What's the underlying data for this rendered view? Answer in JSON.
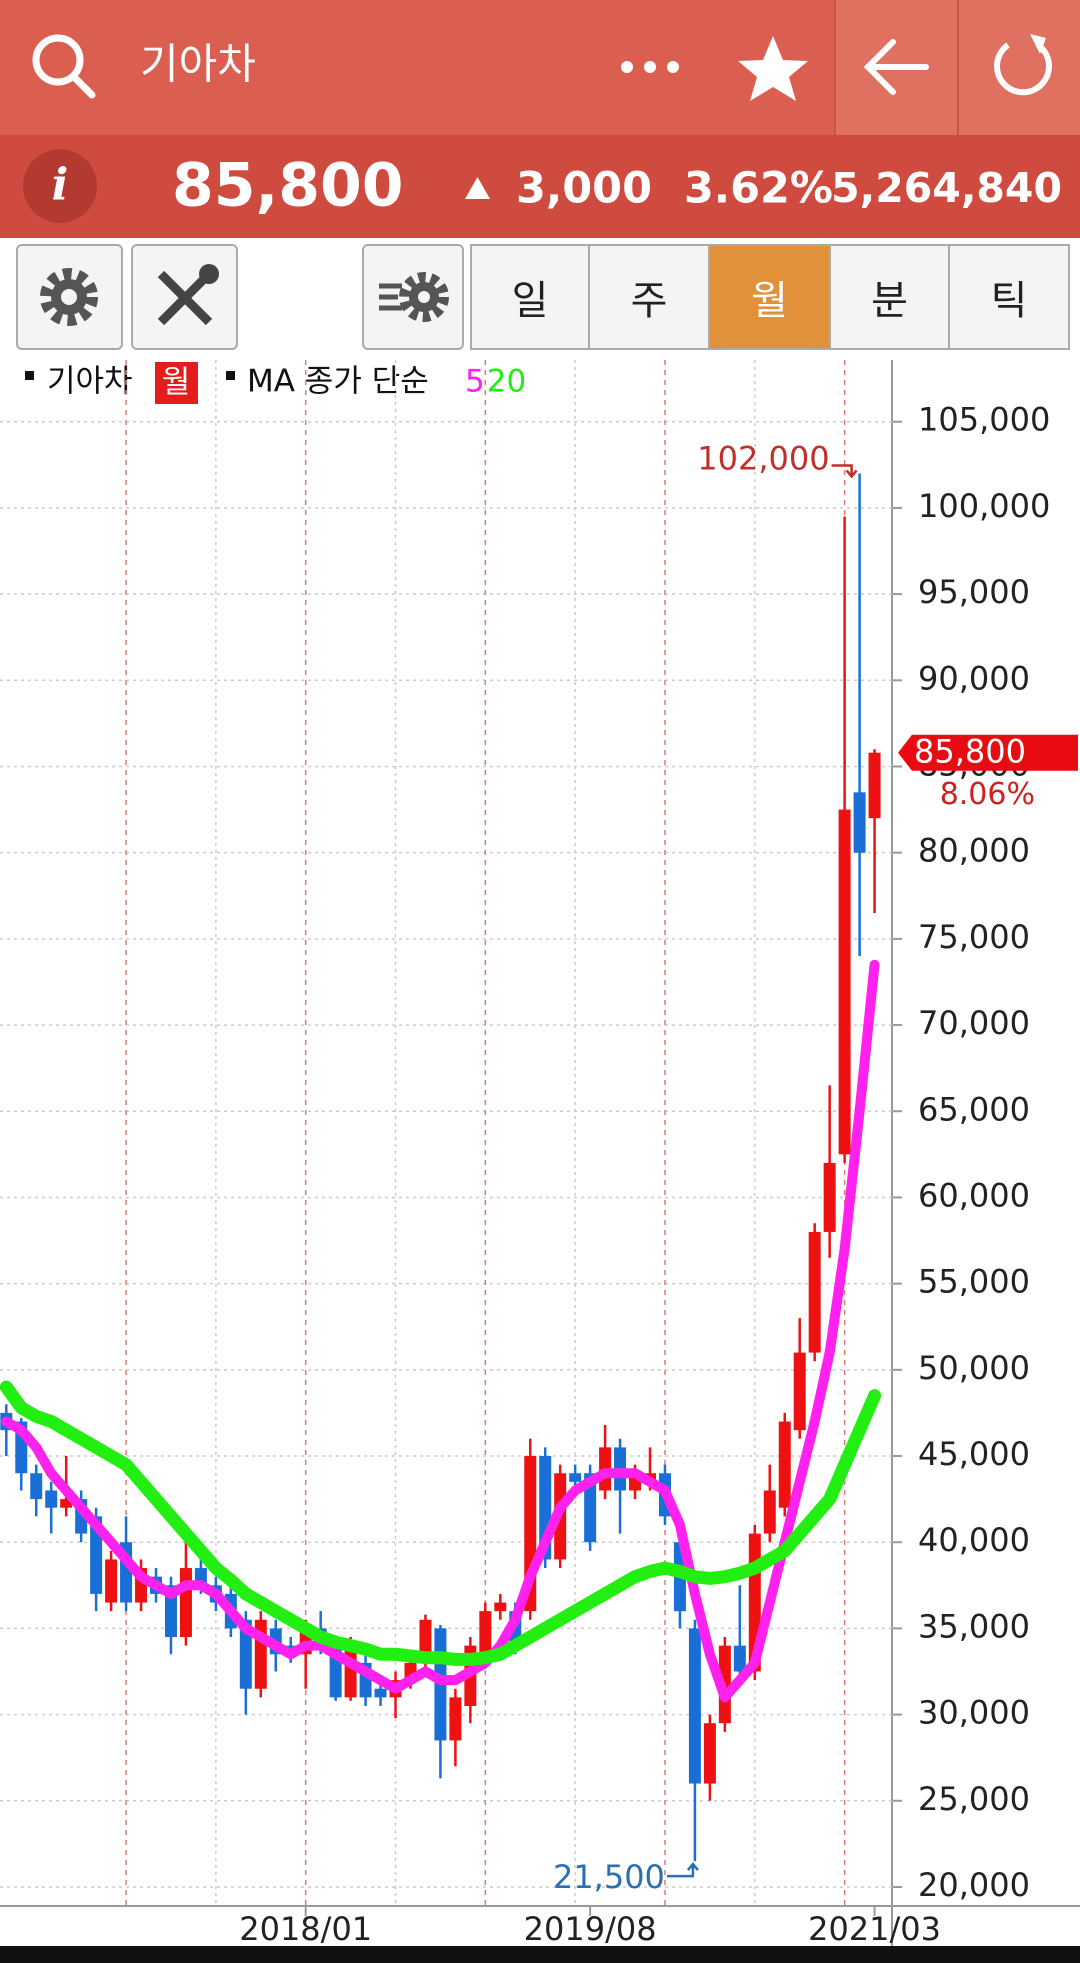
{
  "header": {
    "title": "기아차"
  },
  "quote": {
    "price": "85,800",
    "change": "3,000",
    "change_pct": "3.62%",
    "volume": "5,264,840"
  },
  "toolbar": {
    "periods": [
      "일",
      "주",
      "월",
      "분",
      "틱"
    ],
    "active": 2
  },
  "chart_data": {
    "type": "candlestick",
    "name": "기아차",
    "period": "월",
    "ma_label": "MA 종가 단순",
    "categories": [
      null,
      null,
      null,
      null,
      null,
      null,
      null,
      null,
      null,
      null,
      null,
      null,
      null,
      null,
      null,
      null,
      null,
      null,
      null,
      null,
      "2018/01",
      null,
      null,
      null,
      null,
      null,
      null,
      null,
      null,
      null,
      null,
      null,
      null,
      null,
      null,
      null,
      null,
      null,
      null,
      "2019/08",
      null,
      null,
      null,
      null,
      null,
      null,
      null,
      null,
      null,
      null,
      null,
      null,
      null,
      null,
      null,
      null,
      null,
      null,
      "2021/03"
    ],
    "open": [
      47500,
      47000,
      44000,
      43000,
      42000,
      42500,
      41500,
      36500,
      40000,
      36500,
      38000,
      37500,
      34500,
      38500,
      37500,
      37000,
      35500,
      31500,
      35000,
      34000,
      33500,
      35000,
      34000,
      31000,
      33000,
      31500,
      31000,
      32000,
      33000,
      35000,
      28500,
      30500,
      33500,
      36000,
      36000,
      36000,
      45000,
      39000,
      44000,
      44000,
      43000,
      45500,
      43000,
      43500,
      44000,
      40000,
      35000,
      26000,
      29500,
      34000,
      32500,
      40500,
      42000,
      46500,
      51000,
      58000,
      62500,
      83500,
      82000
    ],
    "high": [
      48000,
      47200,
      44500,
      43500,
      45000,
      43000,
      42000,
      39500,
      41500,
      39000,
      38500,
      38000,
      40000,
      39500,
      38000,
      37500,
      36000,
      36000,
      35500,
      34500,
      35500,
      36000,
      34500,
      34500,
      33500,
      32000,
      32500,
      33500,
      35800,
      35200,
      31500,
      34500,
      36500,
      37000,
      36500,
      46000,
      45500,
      44500,
      44500,
      44500,
      46800,
      46000,
      44500,
      45500,
      44500,
      40500,
      35500,
      30000,
      34500,
      37500,
      41000,
      44500,
      47500,
      53000,
      58500,
      66500,
      99500,
      102000,
      86000
    ],
    "low": [
      45000,
      43000,
      41500,
      40500,
      41500,
      40000,
      36000,
      36000,
      36000,
      36000,
      36500,
      33500,
      34000,
      37000,
      36000,
      34500,
      30000,
      31000,
      32500,
      33000,
      31500,
      33500,
      30800,
      30800,
      30500,
      30500,
      29800,
      31500,
      32500,
      26300,
      27000,
      29500,
      33000,
      35500,
      33500,
      35500,
      38500,
      38500,
      43000,
      39500,
      42500,
      40500,
      42500,
      43000,
      41000,
      35000,
      21500,
      25000,
      29000,
      32000,
      32000,
      40000,
      41500,
      46000,
      50500,
      56500,
      62000,
      74000,
      76500
    ],
    "close": [
      46500,
      44000,
      42500,
      42000,
      42500,
      40500,
      37000,
      39000,
      36500,
      38500,
      37000,
      34500,
      38500,
      37500,
      36500,
      35000,
      31500,
      35500,
      33500,
      33500,
      35000,
      34000,
      31000,
      34000,
      31000,
      31000,
      32000,
      33000,
      35500,
      28500,
      31000,
      34000,
      36000,
      36500,
      34000,
      45000,
      39000,
      44000,
      43500,
      40000,
      45500,
      43000,
      44000,
      44000,
      41500,
      36000,
      26000,
      29500,
      34000,
      32500,
      40500,
      43000,
      47000,
      51000,
      58000,
      62000,
      82500,
      80000,
      85800
    ],
    "up_color": "#ee1111",
    "down_color": "#1a6fd6",
    "series": [
      {
        "name": "5",
        "color": "#ff22ee",
        "values": [
          47000,
          46500,
          45500,
          44000,
          43000,
          42000,
          41000,
          40000,
          39000,
          38000,
          37500,
          37000,
          37500,
          37500,
          37000,
          36000,
          35000,
          34500,
          34000,
          33500,
          34000,
          34000,
          33500,
          33000,
          32500,
          32000,
          31500,
          32000,
          32500,
          32000,
          32000,
          32500,
          33000,
          34000,
          35500,
          38000,
          40000,
          42000,
          43000,
          43500,
          44000,
          44000,
          44000,
          43500,
          43000,
          41000,
          37000,
          33500,
          31000,
          32000,
          33000,
          36500,
          40000,
          43500,
          47000,
          51000,
          57000,
          65000,
          73500
        ]
      },
      {
        "name": "20",
        "color": "#22ee11",
        "values": [
          49000,
          47800,
          47300,
          47000,
          46500,
          46000,
          45500,
          45000,
          44500,
          43500,
          42500,
          41500,
          40500,
          39500,
          38500,
          37800,
          37000,
          36500,
          36000,
          35500,
          35000,
          34500,
          34200,
          34000,
          33800,
          33500,
          33500,
          33400,
          33300,
          33300,
          33200,
          33200,
          33300,
          33500,
          34000,
          34500,
          35000,
          35500,
          36000,
          36500,
          37000,
          37500,
          38000,
          38300,
          38500,
          38300,
          38000,
          37900,
          38000,
          38200,
          38500,
          39000,
          39500,
          40500,
          41500,
          42500,
          44500,
          46500,
          48500
        ]
      }
    ],
    "ylim": [
      19000,
      108500
    ],
    "yticks": [
      {
        "value": 20000,
        "label": "20,000"
      },
      {
        "value": 25000,
        "label": "25,000"
      },
      {
        "value": 30000,
        "label": "30,000"
      },
      {
        "value": 35000,
        "label": "35,000"
      },
      {
        "value": 40000,
        "label": "40,000"
      },
      {
        "value": 45000,
        "label": "45,000"
      },
      {
        "value": 50000,
        "label": "50,000"
      },
      {
        "value": 55000,
        "label": "55,000"
      },
      {
        "value": 60000,
        "label": "60,000"
      },
      {
        "value": 65000,
        "label": "65,000"
      },
      {
        "value": 70000,
        "label": "70,000"
      },
      {
        "value": 75000,
        "label": "75,000"
      },
      {
        "value": 80000,
        "label": "80,000"
      },
      {
        "value": 85000,
        "label": "85,000"
      },
      {
        "value": 90000,
        "label": "90,000"
      },
      {
        "value": 95000,
        "label": "95,000"
      },
      {
        "value": 100000,
        "label": "100,000"
      },
      {
        "value": 105000,
        "label": "105,000"
      }
    ],
    "grid": true,
    "max_mark": {
      "label": "102,000",
      "value": 102000
    },
    "min_mark": {
      "label": "21,500",
      "value": 21500
    },
    "last_price": {
      "label": "85,800",
      "value": 85800
    },
    "last_change": "8.06%"
  }
}
